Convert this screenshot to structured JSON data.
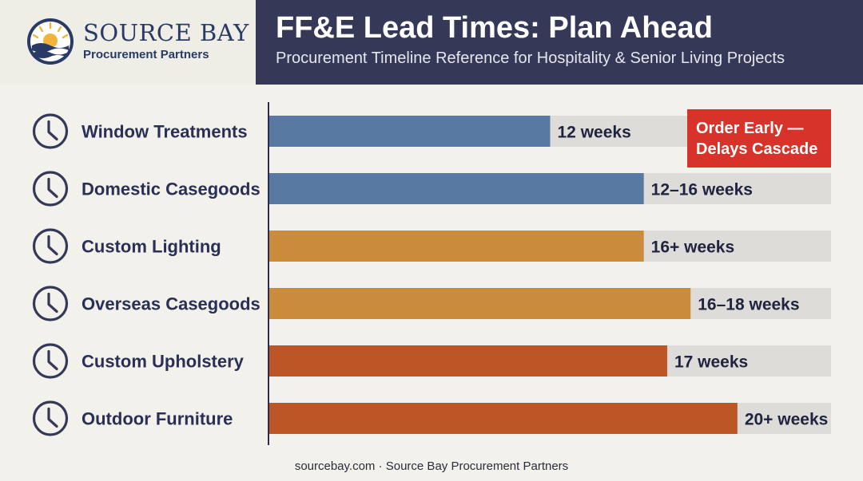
{
  "brand": {
    "name": "SOURCE BAY",
    "tagline": "Procurement Partners"
  },
  "header": {
    "title": "FF&E Lead Times: Plan Ahead",
    "subtitle": "Procurement Timeline Reference for Hospitality & Senior Living Projects"
  },
  "callout": {
    "line1": "Order Early —",
    "line2": "Delays Cascade"
  },
  "footer": {
    "text": "sourcebay.com · Source Bay Procurement Partners"
  },
  "colors": {
    "blue": "#587aa2",
    "amber": "#c98c3c",
    "rust": "#bd5627",
    "track": "#dddcd8",
    "accent_red": "#d7332a",
    "navy": "#353957"
  },
  "icons": {
    "row_icon": "clock-icon",
    "logo": "sun-over-waves-logo"
  },
  "chart_data": {
    "type": "bar",
    "orientation": "horizontal",
    "title": "FF&E Lead Times: Plan Ahead",
    "categories": [
      "Window Treatments",
      "Domestic Casegoods",
      "Custom Lighting",
      "Overseas Casegoods",
      "Custom Upholstery",
      "Outdoor Furniture"
    ],
    "values": [
      12,
      16,
      16,
      18,
      17,
      20
    ],
    "labels": [
      "12 weeks",
      "12–16 weeks",
      "16+ weeks",
      "16–18 weeks",
      "17 weeks",
      "20+ weeks"
    ],
    "colors": [
      "#587aa2",
      "#587aa2",
      "#c98c3c",
      "#c98c3c",
      "#bd5627",
      "#bd5627"
    ],
    "unit": "weeks",
    "xlim": [
      0,
      24
    ],
    "grid": false,
    "legend": "none"
  }
}
